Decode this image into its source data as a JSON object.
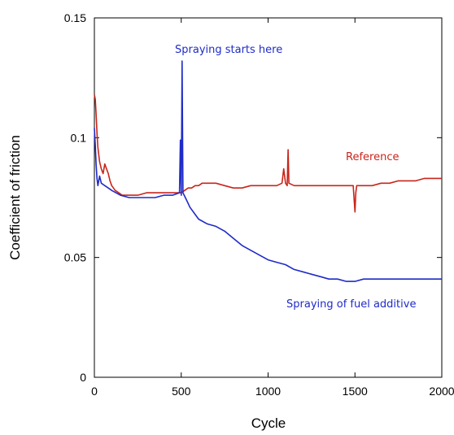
{
  "chart_data": {
    "type": "line",
    "title": "",
    "xlabel": "Cycle",
    "ylabel": "Coefficient of friction",
    "xlim": [
      0,
      2000
    ],
    "ylim": [
      0,
      0.15
    ],
    "x_ticks": [
      "0",
      "500",
      "1000",
      "1500",
      "2000"
    ],
    "y_ticks": [
      "0",
      "0.05",
      "0.1",
      "0.15"
    ],
    "grid": false,
    "series": [
      {
        "name": "Reference",
        "color": "#c8251b",
        "x": [
          0,
          5,
          10,
          15,
          20,
          30,
          40,
          50,
          60,
          70,
          80,
          90,
          100,
          120,
          140,
          160,
          180,
          200,
          250,
          300,
          350,
          400,
          450,
          480,
          500,
          520,
          540,
          560,
          580,
          600,
          620,
          650,
          700,
          750,
          800,
          850,
          900,
          950,
          1000,
          1050,
          1080,
          1090,
          1100,
          1110,
          1115,
          1120,
          1150,
          1200,
          1250,
          1300,
          1350,
          1400,
          1450,
          1490,
          1500,
          1505,
          1510,
          1550,
          1600,
          1650,
          1700,
          1750,
          1800,
          1850,
          1900,
          1950,
          2000
        ],
        "y": [
          0.118,
          0.116,
          0.11,
          0.102,
          0.096,
          0.09,
          0.087,
          0.085,
          0.089,
          0.087,
          0.085,
          0.082,
          0.08,
          0.078,
          0.077,
          0.076,
          0.076,
          0.076,
          0.076,
          0.077,
          0.077,
          0.077,
          0.077,
          0.077,
          0.077,
          0.078,
          0.079,
          0.079,
          0.08,
          0.08,
          0.081,
          0.081,
          0.081,
          0.08,
          0.079,
          0.079,
          0.08,
          0.08,
          0.08,
          0.08,
          0.081,
          0.087,
          0.081,
          0.08,
          0.095,
          0.081,
          0.08,
          0.08,
          0.08,
          0.08,
          0.08,
          0.08,
          0.08,
          0.08,
          0.069,
          0.077,
          0.08,
          0.08,
          0.08,
          0.081,
          0.081,
          0.082,
          0.082,
          0.082,
          0.083,
          0.083,
          0.083
        ]
      },
      {
        "name": "Spraying of fuel additive",
        "color": "#1f2bc8",
        "x": [
          0,
          5,
          10,
          15,
          20,
          30,
          40,
          60,
          80,
          100,
          150,
          200,
          250,
          300,
          350,
          400,
          450,
          490,
          495,
          500,
          505,
          510,
          530,
          550,
          580,
          600,
          650,
          700,
          750,
          800,
          850,
          900,
          950,
          1000,
          1050,
          1100,
          1150,
          1200,
          1250,
          1300,
          1350,
          1400,
          1450,
          1500,
          1550,
          1600,
          1650,
          1700,
          1750,
          1800,
          1850,
          1900,
          1950,
          2000
        ],
        "y": [
          0.104,
          0.097,
          0.089,
          0.083,
          0.08,
          0.084,
          0.081,
          0.08,
          0.079,
          0.078,
          0.076,
          0.075,
          0.075,
          0.075,
          0.075,
          0.076,
          0.076,
          0.077,
          0.099,
          0.076,
          0.132,
          0.077,
          0.074,
          0.071,
          0.068,
          0.066,
          0.064,
          0.063,
          0.061,
          0.058,
          0.055,
          0.053,
          0.051,
          0.049,
          0.048,
          0.047,
          0.045,
          0.044,
          0.043,
          0.042,
          0.041,
          0.041,
          0.04,
          0.04,
          0.041,
          0.041,
          0.041,
          0.041,
          0.041,
          0.041,
          0.041,
          0.041,
          0.041,
          0.041
        ]
      }
    ],
    "annotations": [
      {
        "text": "Spraying starts here",
        "color": "#1f2bc8"
      },
      {
        "text": "Reference",
        "color": "#c8251b"
      },
      {
        "text": "Spraying of fuel additive",
        "color": "#1f2bc8"
      }
    ]
  }
}
